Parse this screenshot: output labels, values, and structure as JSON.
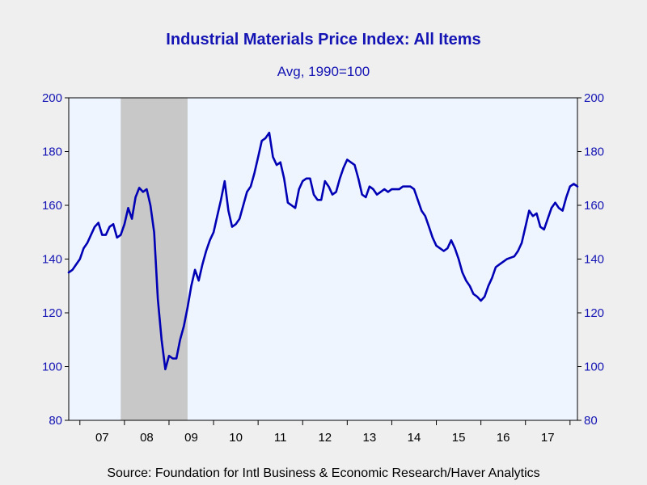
{
  "chart_data": {
    "type": "line",
    "title": "Industrial Materials Price Index: All Items",
    "subtitle": "Avg, 1990=100",
    "source": "Source:  Foundation for Intl Business & Economic Research/Haver Analytics",
    "xlabel": "",
    "ylabel": "",
    "ylim": [
      80,
      200
    ],
    "yticks": [
      80,
      100,
      120,
      140,
      160,
      180,
      200
    ],
    "xlim": [
      "2006-10",
      "2017-12"
    ],
    "x_tick_labels": [
      "07",
      "08",
      "09",
      "10",
      "11",
      "12",
      "13",
      "14",
      "15",
      "16",
      "17"
    ],
    "grid": false,
    "right_axis": true,
    "recession_shading": {
      "start": "2007-12",
      "end": "2009-06"
    },
    "series": [
      {
        "values": [
          [
            "2006-10",
            135
          ],
          [
            "2006-11",
            136
          ],
          [
            "2006-12",
            138
          ],
          [
            "2007-01",
            140
          ],
          [
            "2007-02",
            144
          ],
          [
            "2007-03",
            146
          ],
          [
            "2007-04",
            149
          ],
          [
            "2007-05",
            152
          ],
          [
            "2007-06",
            153.5
          ],
          [
            "2007-07",
            149
          ],
          [
            "2007-08",
            149
          ],
          [
            "2007-09",
            152
          ],
          [
            "2007-10",
            153
          ],
          [
            "2007-11",
            148
          ],
          [
            "2007-12",
            149
          ],
          [
            "2008-01",
            153
          ],
          [
            "2008-02",
            159
          ],
          [
            "2008-03",
            155
          ],
          [
            "2008-04",
            163
          ],
          [
            "2008-05",
            166.5
          ],
          [
            "2008-06",
            165
          ],
          [
            "2008-07",
            166
          ],
          [
            "2008-08",
            160
          ],
          [
            "2008-09",
            150
          ],
          [
            "2008-10",
            125
          ],
          [
            "2008-11",
            110
          ],
          [
            "2008-12",
            99
          ],
          [
            "2009-01",
            104
          ],
          [
            "2009-02",
            103
          ],
          [
            "2009-03",
            103
          ],
          [
            "2009-04",
            110
          ],
          [
            "2009-05",
            115
          ],
          [
            "2009-06",
            122
          ],
          [
            "2009-07",
            130
          ],
          [
            "2009-08",
            136
          ],
          [
            "2009-09",
            132
          ],
          [
            "2009-10",
            138
          ],
          [
            "2009-11",
            143
          ],
          [
            "2009-12",
            147
          ],
          [
            "2010-01",
            150
          ],
          [
            "2010-02",
            156
          ],
          [
            "2010-03",
            162
          ],
          [
            "2010-04",
            169
          ],
          [
            "2010-05",
            158
          ],
          [
            "2010-06",
            152
          ],
          [
            "2010-07",
            153
          ],
          [
            "2010-08",
            155
          ],
          [
            "2010-09",
            160
          ],
          [
            "2010-10",
            165
          ],
          [
            "2010-11",
            167
          ],
          [
            "2010-12",
            172
          ],
          [
            "2011-01",
            178
          ],
          [
            "2011-02",
            184
          ],
          [
            "2011-03",
            185
          ],
          [
            "2011-04",
            187
          ],
          [
            "2011-05",
            178
          ],
          [
            "2011-06",
            175
          ],
          [
            "2011-07",
            176
          ],
          [
            "2011-08",
            170
          ],
          [
            "2011-09",
            161
          ],
          [
            "2011-10",
            160
          ],
          [
            "2011-11",
            159
          ],
          [
            "2011-12",
            166
          ],
          [
            "2012-01",
            169
          ],
          [
            "2012-02",
            170
          ],
          [
            "2012-03",
            170
          ],
          [
            "2012-04",
            164
          ],
          [
            "2012-05",
            162
          ],
          [
            "2012-06",
            162
          ],
          [
            "2012-07",
            169
          ],
          [
            "2012-08",
            167
          ],
          [
            "2012-09",
            164
          ],
          [
            "2012-10",
            165
          ],
          [
            "2012-11",
            170
          ],
          [
            "2012-12",
            174
          ],
          [
            "2013-01",
            177
          ],
          [
            "2013-02",
            176
          ],
          [
            "2013-03",
            175
          ],
          [
            "2013-04",
            170
          ],
          [
            "2013-05",
            164
          ],
          [
            "2013-06",
            163
          ],
          [
            "2013-07",
            167
          ],
          [
            "2013-08",
            166
          ],
          [
            "2013-09",
            164
          ],
          [
            "2013-10",
            165
          ],
          [
            "2013-11",
            166
          ],
          [
            "2013-12",
            165
          ],
          [
            "2014-01",
            166
          ],
          [
            "2014-02",
            166
          ],
          [
            "2014-03",
            166
          ],
          [
            "2014-04",
            167
          ],
          [
            "2014-05",
            167
          ],
          [
            "2014-06",
            167
          ],
          [
            "2014-07",
            166
          ],
          [
            "2014-08",
            162
          ],
          [
            "2014-09",
            158
          ],
          [
            "2014-10",
            156
          ],
          [
            "2014-11",
            152
          ],
          [
            "2014-12",
            148
          ],
          [
            "2015-01",
            145
          ],
          [
            "2015-02",
            144
          ],
          [
            "2015-03",
            143
          ],
          [
            "2015-04",
            144
          ],
          [
            "2015-05",
            147
          ],
          [
            "2015-06",
            144
          ],
          [
            "2015-07",
            140
          ],
          [
            "2015-08",
            135
          ],
          [
            "2015-09",
            132
          ],
          [
            "2015-10",
            130
          ],
          [
            "2015-11",
            127
          ],
          [
            "2015-12",
            126
          ],
          [
            "2016-01",
            124.5
          ],
          [
            "2016-02",
            126
          ],
          [
            "2016-03",
            130
          ],
          [
            "2016-04",
            133
          ],
          [
            "2016-05",
            137
          ],
          [
            "2016-06",
            138
          ],
          [
            "2016-07",
            139
          ],
          [
            "2016-08",
            140
          ],
          [
            "2016-09",
            140.5
          ],
          [
            "2016-10",
            141
          ],
          [
            "2016-11",
            143
          ],
          [
            "2016-12",
            146
          ],
          [
            "2017-01",
            152
          ],
          [
            "2017-02",
            158
          ],
          [
            "2017-03",
            156
          ],
          [
            "2017-04",
            157
          ],
          [
            "2017-05",
            152
          ],
          [
            "2017-06",
            151
          ],
          [
            "2017-07",
            155
          ],
          [
            "2017-08",
            159
          ],
          [
            "2017-09",
            161
          ],
          [
            "2017-10",
            159
          ],
          [
            "2017-11",
            158
          ],
          [
            "2017-12",
            163
          ],
          [
            "2018-01",
            167
          ],
          [
            "2018-02",
            168
          ],
          [
            "2018-03",
            167
          ]
        ]
      }
    ],
    "colors": {
      "line": "#0000b4",
      "plot_bg": "#eef5ff",
      "recession": "#c8c8c8",
      "axis_text": "#1414b4",
      "frame": "#000000"
    }
  }
}
